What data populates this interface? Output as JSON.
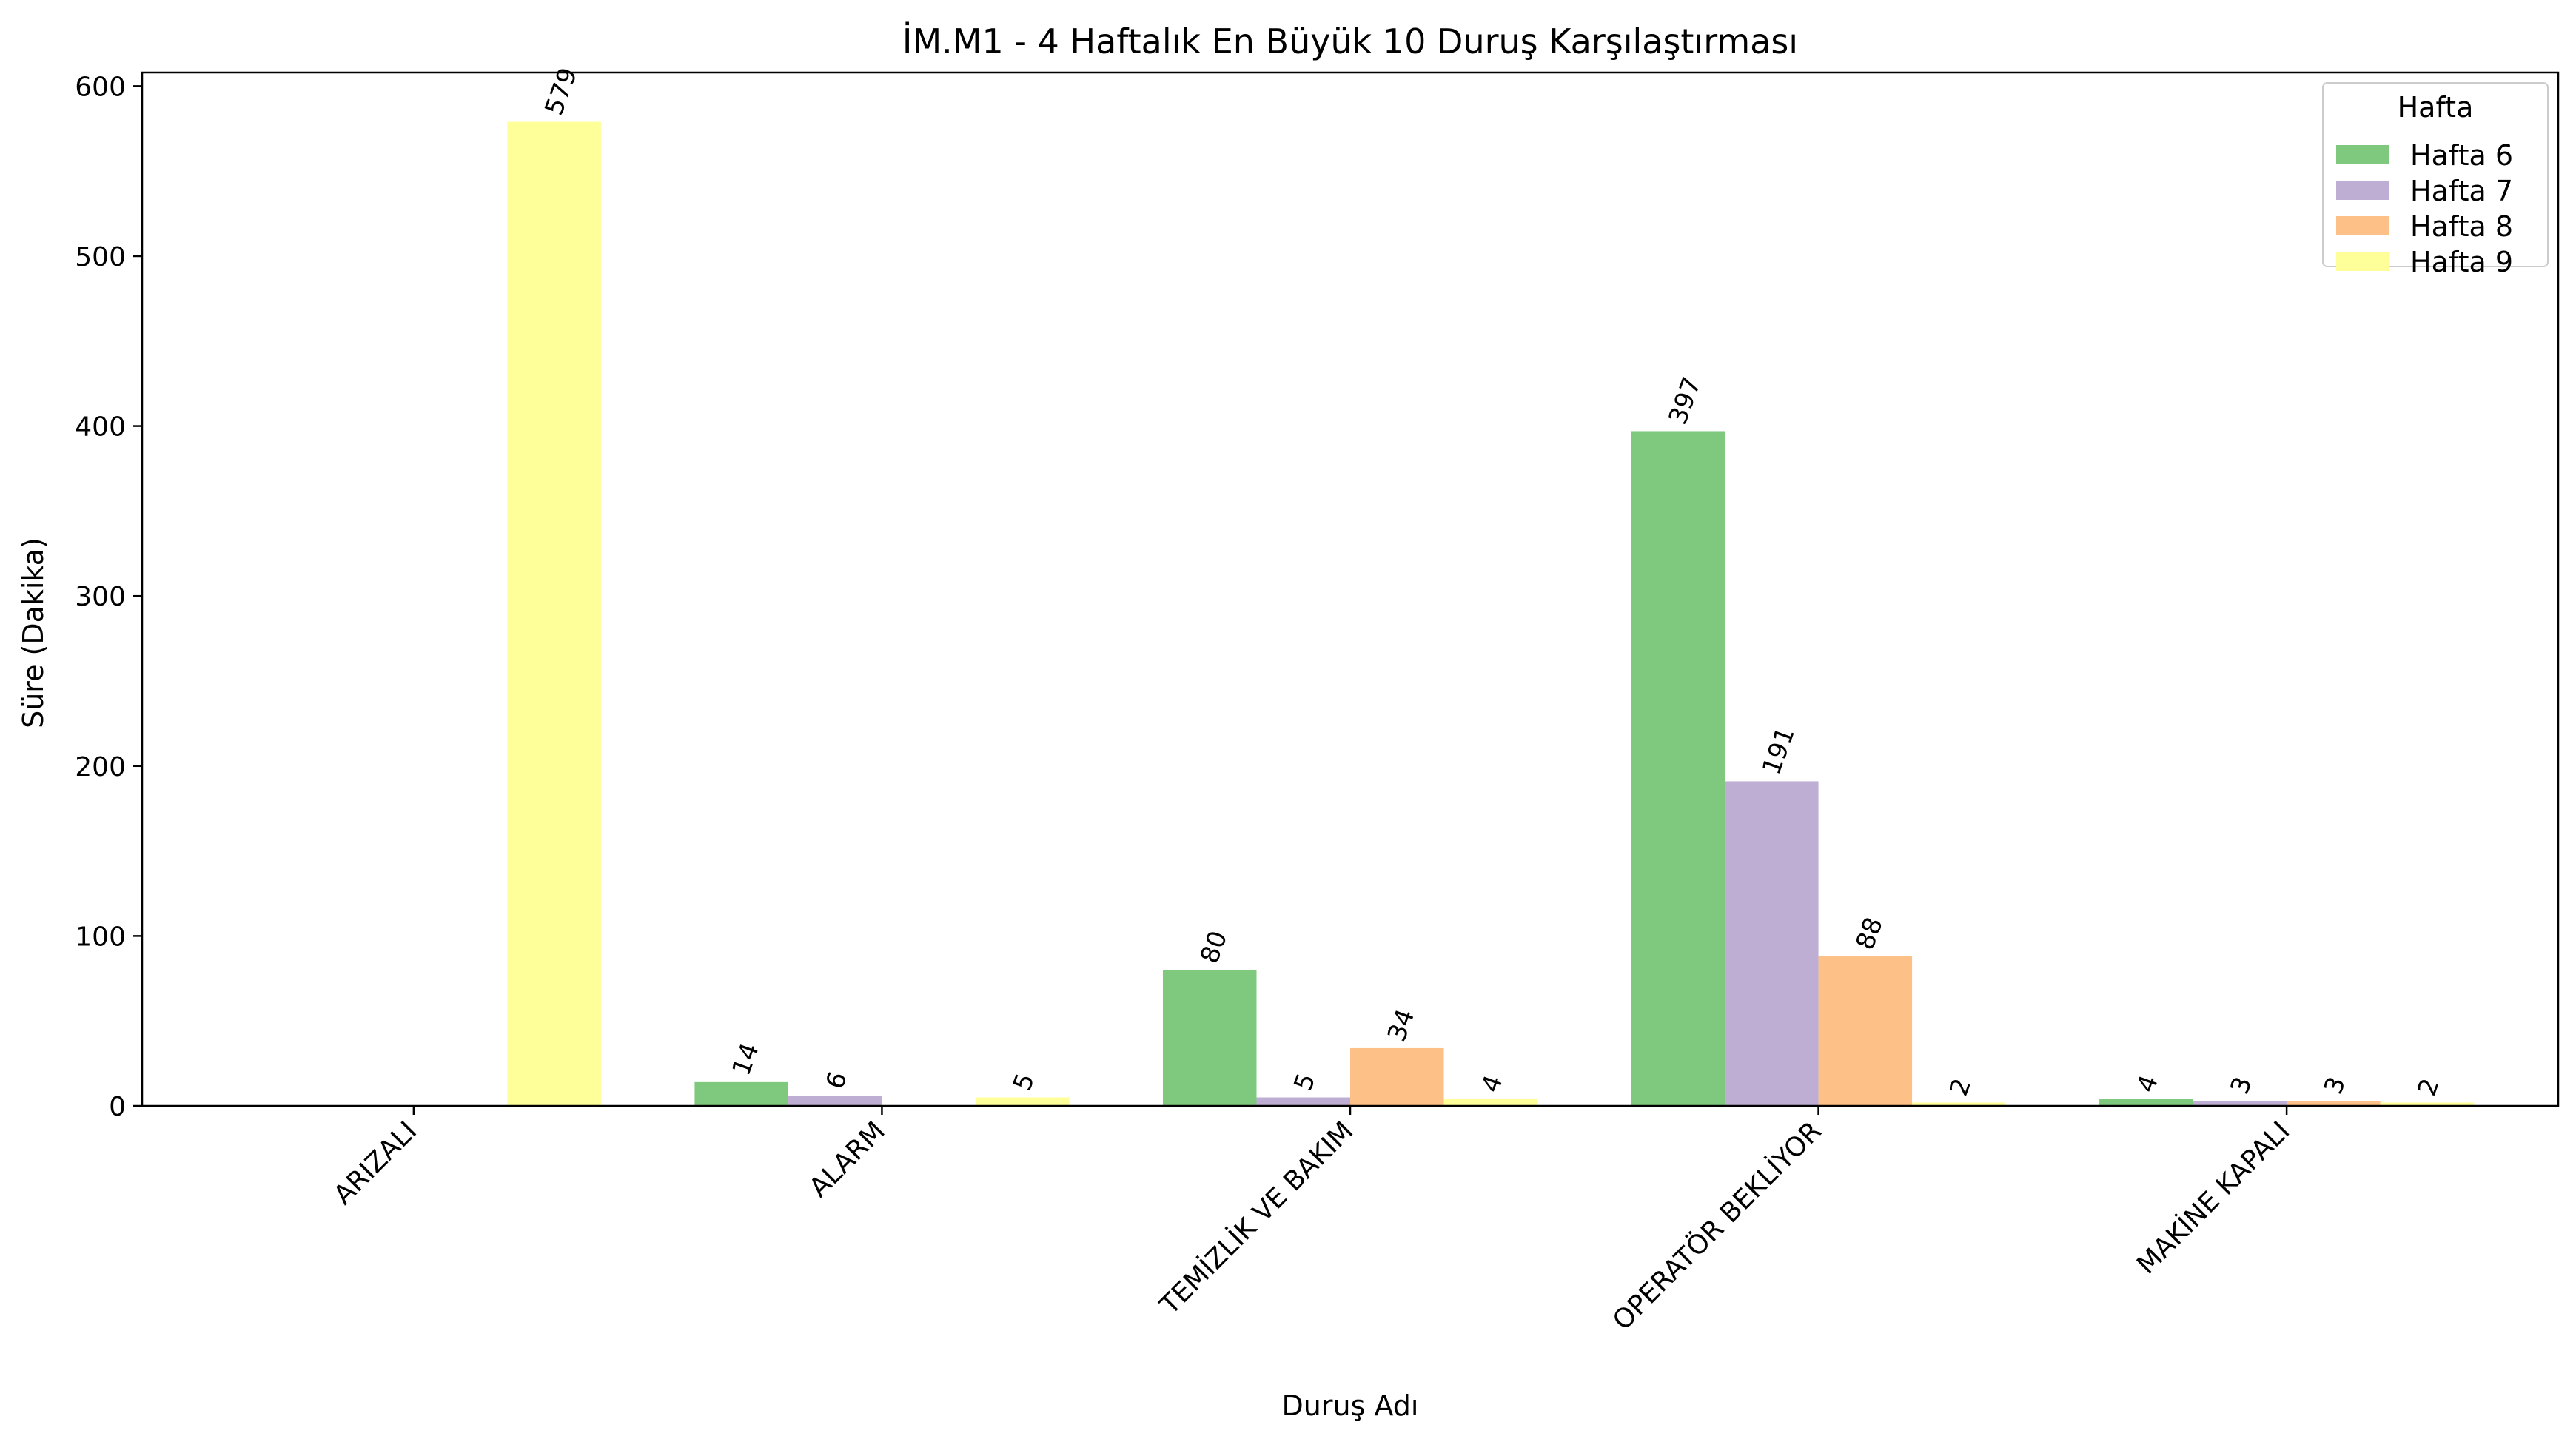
{
  "chart_data": {
    "type": "bar",
    "title": "İM.M1 - 4 Haftalık En Büyük 10 Duruş Karşılaştırması",
    "xlabel": "Duruş Adı",
    "ylabel": "Süre (Dakika)",
    "ylim": [
      0,
      608
    ],
    "yticks": [
      0,
      100,
      200,
      300,
      400,
      500,
      600
    ],
    "grid": false,
    "legend": {
      "title": "Hafta",
      "placement": "top-right"
    },
    "categories": [
      "ARIZALI",
      "ALARM",
      "TEMİZLİK VE BAKIM",
      "OPERATÖR BEKLİYOR",
      "MAKİNE KAPALI"
    ],
    "series": [
      {
        "name": "Hafta 6",
        "color": "#7fc97f",
        "values": [
          null,
          14,
          80,
          397,
          4
        ]
      },
      {
        "name": "Hafta 7",
        "color": "#beaed4",
        "values": [
          null,
          6,
          5,
          191,
          3
        ]
      },
      {
        "name": "Hafta 8",
        "color": "#fdc086",
        "values": [
          null,
          null,
          34,
          88,
          3
        ]
      },
      {
        "name": "Hafta 9",
        "color": "#ffff99",
        "values": [
          579,
          5,
          4,
          2,
          2
        ]
      }
    ]
  }
}
